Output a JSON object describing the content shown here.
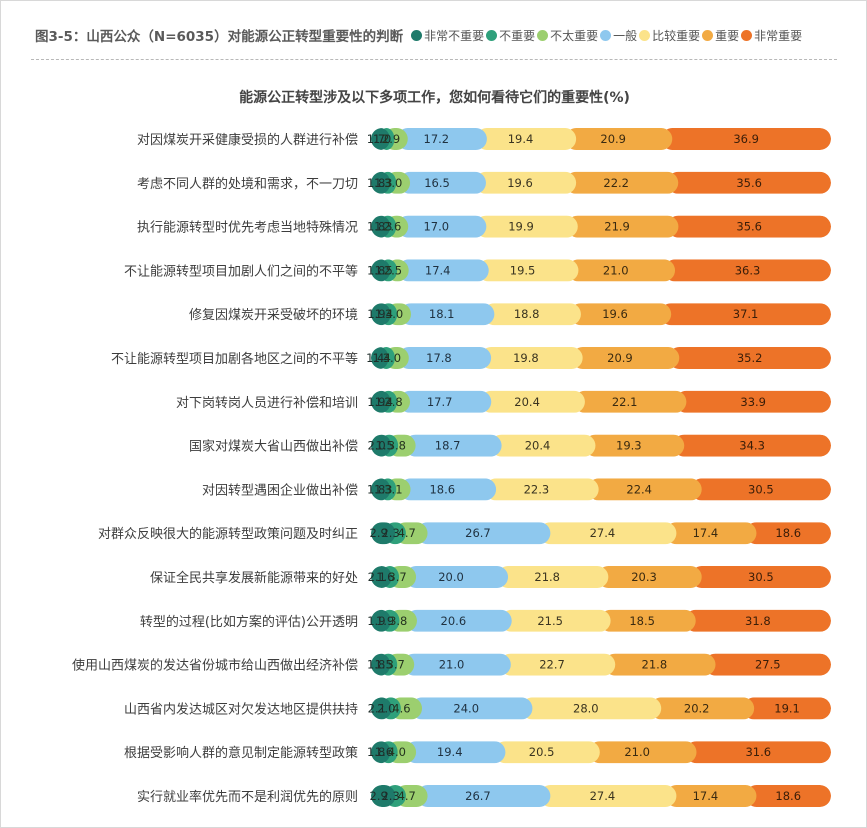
{
  "header": {
    "figure_title": "图3-5：山西公众（N=6035）对能源公正转型重要性的判断"
  },
  "legend": [
    {
      "label": "非常不重要",
      "color": "#1e7a6a"
    },
    {
      "label": "不重要",
      "color": "#2fa07b"
    },
    {
      "label": "不太重要",
      "color": "#9ccf6f"
    },
    {
      "label": "一般",
      "color": "#8ec8ee"
    },
    {
      "label": "比较重要",
      "color": "#fbe38a"
    },
    {
      "label": "重要",
      "color": "#f2aa43"
    },
    {
      "label": "非常重要",
      "color": "#ed7328"
    }
  ],
  "chart_data": {
    "type": "bar",
    "orientation": "horizontal",
    "stacked": true,
    "percent": true,
    "title": "能源公正转型涉及以下多项工作，您如何看待它们的重要性(%)",
    "categories": [
      "对因煤炭开采健康受损的人群进行补偿",
      "考虑不同人群的处境和需求，不一刀切",
      "执行能源转型时优先考虑当地特殊情况",
      "不让能源转型项目加剧人们之间的不平等",
      "修复因煤炭开采受破坏的环境",
      "不让能源转型项目加剧各地区之间的不平等",
      "对下岗转岗人员进行补偿和培训",
      "国家对煤炭大省山西做出补偿",
      "对因转型遇困企业做出补偿",
      "对群众反映很大的能源转型政策问题及时纠正",
      "保证全民共享发展新能源带来的好处",
      "转型的过程(比如方案的评估)公开透明",
      "使用山西煤炭的发达省份城市给山西做出经济补偿",
      "山西省内发达城区对欠发达地区提供扶持",
      "根据受影响人群的意见制定能源转型政策",
      "实行就业率优先而不是利润优先的原则"
    ],
    "series": [
      {
        "name": "非常不重要",
        "values": [
          1.7,
          1.8,
          1.8,
          1.8,
          1.9,
          1.4,
          1.9,
          2.0,
          1.8,
          2.9,
          2.1,
          1.9,
          1.8,
          2.1,
          1.8,
          2.9
        ]
      },
      {
        "name": "不重要",
        "values": [
          1.0,
          1.3,
          1.3,
          1.5,
          1.4,
          1.4,
          1.4,
          1.5,
          1.3,
          2.3,
          1.6,
          1.9,
          1.5,
          2.0,
          1.6,
          2.3
        ]
      },
      {
        "name": "不太重要",
        "values": [
          2.9,
          3.0,
          2.6,
          2.5,
          3.0,
          3.0,
          2.8,
          3.8,
          3.1,
          4.7,
          3.7,
          3.8,
          3.7,
          4.6,
          4.0,
          4.7
        ]
      },
      {
        "name": "一般",
        "values": [
          17.2,
          16.5,
          17.0,
          17.4,
          18.1,
          17.8,
          17.7,
          18.7,
          18.6,
          26.7,
          20.0,
          20.6,
          21.0,
          24.0,
          19.4,
          26.7
        ]
      },
      {
        "name": "比较重要",
        "values": [
          19.4,
          19.6,
          19.9,
          19.5,
          18.8,
          19.8,
          20.4,
          20.4,
          22.3,
          27.4,
          21.8,
          21.5,
          22.7,
          28.0,
          20.5,
          27.4
        ]
      },
      {
        "name": "重要",
        "values": [
          20.9,
          22.2,
          21.9,
          21.0,
          19.6,
          20.9,
          22.1,
          19.3,
          22.4,
          17.4,
          20.3,
          18.5,
          21.8,
          20.2,
          21.0,
          17.4
        ]
      },
      {
        "name": "非常重要",
        "values": [
          36.9,
          35.6,
          35.6,
          36.3,
          37.1,
          35.2,
          33.9,
          34.3,
          30.5,
          18.6,
          30.5,
          31.8,
          27.5,
          19.1,
          31.6,
          18.6
        ]
      }
    ],
    "value_labels": [
      [
        "1.7",
        "1.0",
        "2.9",
        "17.2",
        "19.4",
        "20.9",
        "36.9"
      ],
      [
        "1.8",
        "1.3",
        "3.0",
        "16.5",
        "19.6",
        "22.2",
        "35.6"
      ],
      [
        "1.8",
        "1.3",
        "2.6",
        "17.0",
        "19.9",
        "21.9",
        "35.6"
      ],
      [
        "1.8",
        "1.5",
        "2.5",
        "17.4",
        "19.5",
        "21.0",
        "36.3"
      ],
      [
        "1.9",
        "1.4",
        "3.0",
        "18.1",
        "18.8",
        "19.6",
        "37.1"
      ],
      [
        "1.4",
        "1.4",
        "3.0",
        "17.8",
        "19.8",
        "20.9",
        "35.2"
      ],
      [
        "1.9",
        "1.4",
        "2.8",
        "17.7",
        "20.4",
        "22.1",
        "33.9"
      ],
      [
        "2.0",
        "1.5",
        "3.8",
        "18.7",
        "20.4",
        "19.3",
        "34.3"
      ],
      [
        "1.8",
        "1.3",
        "3.1",
        "18.6",
        "22.3",
        "22.4",
        "30.5"
      ],
      [
        "2.9",
        "2.3",
        "4.7",
        "26.7",
        "27.4",
        "17.4",
        "18.6"
      ],
      [
        "2.1",
        "1.6",
        "3.7",
        "20.0",
        "21.8",
        "20.3",
        "30.5"
      ],
      [
        "1.9",
        "1.9",
        "3.8",
        "20.6",
        "21.5",
        "18.5",
        "31.8"
      ],
      [
        "1.8",
        "1.5",
        "3.7",
        "21.0",
        "22.7",
        "21.8",
        "27.5"
      ],
      [
        "2.1",
        "2.0",
        "4.6",
        "24.0",
        "28.0",
        "20.2",
        "19.1"
      ],
      [
        "1.8",
        "1.6",
        "4.0",
        "19.4",
        "20.5",
        "21.0",
        "31.6"
      ],
      [
        "2.9",
        "2.3",
        "4.7",
        "26.7",
        "27.4",
        "17.4",
        "18.6"
      ]
    ],
    "grid": false,
    "legend_position": "top-right",
    "xlim": [
      0,
      100
    ]
  }
}
